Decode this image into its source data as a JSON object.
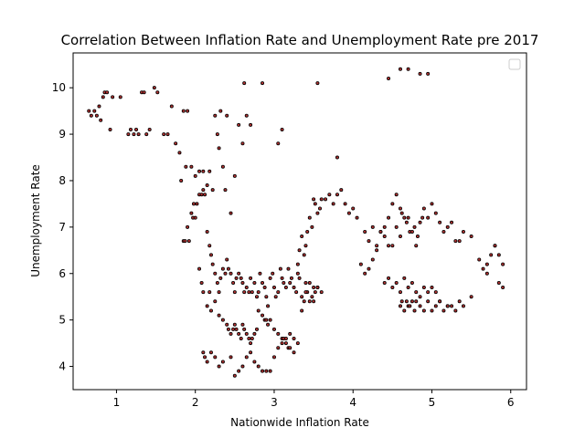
{
  "chart_data": {
    "type": "scatter",
    "title": "Correlation Between Inflation Rate and Unemployment Rate pre 2017",
    "xlabel": "Nationwide Inflation Rate",
    "ylabel": "Unemployment Rate",
    "xlim": [
      0.45,
      6.2
    ],
    "ylim": [
      3.5,
      10.75
    ],
    "xticks": [
      "1",
      "2",
      "3",
      "4",
      "5",
      "6"
    ],
    "yticks": [
      "4",
      "5",
      "6",
      "7",
      "8",
      "9",
      "10"
    ],
    "grid": false,
    "legend": "top-right (empty)",
    "marker_fill": "#b03030",
    "marker_edge": "#000000",
    "series": [
      {
        "x": [
          0.65,
          0.68,
          0.72,
          0.75,
          0.78,
          0.8,
          0.83,
          0.85,
          0.88,
          0.92,
          0.95,
          1.05,
          1.15,
          1.18,
          1.22,
          1.25,
          1.28,
          1.32,
          1.35,
          1.38,
          1.42,
          1.48,
          1.52,
          1.6,
          1.65,
          1.7,
          1.75,
          1.8,
          1.82,
          1.85,
          1.88,
          1.9,
          1.95,
          2.0,
          2.05,
          2.1,
          2.15,
          2.18,
          2.22,
          2.25,
          2.28,
          2.3,
          2.32,
          2.35,
          2.38,
          2.4,
          2.45,
          2.5,
          2.55,
          2.6,
          2.62,
          2.65,
          2.7,
          2.85,
          3.05,
          3.1,
          3.55,
          3.8,
          4.45,
          4.6,
          4.7,
          4.85,
          4.95,
          1.85,
          1.87,
          1.9,
          1.92,
          1.95,
          1.97,
          1.98,
          2.0,
          2.02,
          2.05,
          2.08,
          2.1,
          2.12,
          2.15,
          2.18,
          2.2,
          2.22,
          2.25,
          2.28,
          2.3,
          2.32,
          2.35,
          2.38,
          2.4,
          2.42,
          2.45,
          2.48,
          2.5,
          2.52,
          2.55,
          2.58,
          2.6,
          2.62,
          2.65,
          2.68,
          2.7,
          2.72,
          2.75,
          2.78,
          2.8,
          2.82,
          2.85,
          2.88,
          2.9,
          2.92,
          2.95,
          2.98,
          3.0,
          3.02,
          3.05,
          3.08,
          3.1,
          3.12,
          3.15,
          3.18,
          3.2,
          3.22,
          3.25,
          3.28,
          3.3,
          3.32,
          3.35,
          3.38,
          3.4,
          3.42,
          3.45,
          3.48,
          3.5,
          3.52,
          3.55,
          2.05,
          2.08,
          2.1,
          2.15,
          2.18,
          2.2,
          2.25,
          2.3,
          2.35,
          2.4,
          2.42,
          2.45,
          2.48,
          2.5,
          2.52,
          2.55,
          2.58,
          2.6,
          2.62,
          2.65,
          2.68,
          2.7,
          2.72,
          2.75,
          2.78,
          2.8,
          2.85,
          2.88,
          2.9,
          2.92,
          2.95,
          3.0,
          3.05,
          3.1,
          3.12,
          3.15,
          3.18,
          3.2,
          3.25,
          2.1,
          2.12,
          2.15,
          2.2,
          2.25,
          2.3,
          2.35,
          2.45,
          2.5,
          2.55,
          2.6,
          2.65,
          2.7,
          2.75,
          2.8,
          2.85,
          2.9,
          2.95,
          3.0,
          3.05,
          3.1,
          3.15,
          3.2,
          3.25,
          3.3,
          3.35,
          3.4,
          3.45,
          3.5,
          3.55,
          3.6,
          3.3,
          3.32,
          3.35,
          3.38,
          3.4,
          3.42,
          3.45,
          3.48,
          3.5,
          3.52,
          3.55,
          3.58,
          3.6,
          3.65,
          3.7,
          3.75,
          3.8,
          3.85,
          3.9,
          3.95,
          4.0,
          4.05,
          4.1,
          4.15,
          4.2,
          4.25,
          4.3,
          4.35,
          4.4,
          4.45,
          4.5,
          4.55,
          4.6,
          4.15,
          4.2,
          4.25,
          4.3,
          4.35,
          4.4,
          4.45,
          4.5,
          4.55,
          4.6,
          4.62,
          4.65,
          4.68,
          4.7,
          4.72,
          4.75,
          4.78,
          4.8,
          4.82,
          4.85,
          4.88,
          4.9,
          4.95,
          5.0,
          5.05,
          5.1,
          5.15,
          5.2,
          5.25,
          5.3,
          5.35,
          5.4,
          5.5,
          5.6,
          5.7,
          5.8,
          5.85,
          5.9,
          4.6,
          4.62,
          4.65,
          4.68,
          4.7,
          4.72,
          4.75,
          4.78,
          4.8,
          4.85,
          4.9,
          4.95,
          5.0,
          5.05,
          5.1,
          5.15,
          5.2,
          5.25,
          5.3,
          5.35,
          5.4,
          5.5,
          5.65,
          5.7,
          5.75,
          5.8,
          5.85,
          5.9,
          4.4,
          4.45,
          4.5,
          4.55,
          4.6,
          4.65,
          4.7,
          4.75,
          4.8,
          4.85,
          4.9,
          4.95,
          5.0,
          5.05,
          5.1,
          5.2
        ],
        "y": [
          9.5,
          9.4,
          9.5,
          9.4,
          9.6,
          9.3,
          9.8,
          9.9,
          9.9,
          9.1,
          9.8,
          9.8,
          9.0,
          9.1,
          9.0,
          9.1,
          9.0,
          9.9,
          9.9,
          9.0,
          9.1,
          10.0,
          9.9,
          9.0,
          9.0,
          9.6,
          8.8,
          8.6,
          8.0,
          9.5,
          8.3,
          9.5,
          8.3,
          8.1,
          8.2,
          8.2,
          7.9,
          8.2,
          7.8,
          9.4,
          9.0,
          8.7,
          9.5,
          8.3,
          7.8,
          9.4,
          7.3,
          8.1,
          9.2,
          8.8,
          10.1,
          9.4,
          9.2,
          10.1,
          8.8,
          9.1,
          10.1,
          8.5,
          10.2,
          10.4,
          10.4,
          10.3,
          10.3,
          6.7,
          6.7,
          7.0,
          6.7,
          7.3,
          7.2,
          7.5,
          7.2,
          7.5,
          7.7,
          7.7,
          7.8,
          7.7,
          6.9,
          6.6,
          6.4,
          6.2,
          6.0,
          5.8,
          5.6,
          5.9,
          6.1,
          6.0,
          6.3,
          6.1,
          6.0,
          5.8,
          5.6,
          5.9,
          6.0,
          5.9,
          5.8,
          5.6,
          5.7,
          5.6,
          5.9,
          5.6,
          5.8,
          5.5,
          5.6,
          6.0,
          5.8,
          5.7,
          5.5,
          5.3,
          5.9,
          6.0,
          5.7,
          5.5,
          5.6,
          6.1,
          5.9,
          5.8,
          5.7,
          6.1,
          5.8,
          5.9,
          5.7,
          5.6,
          6.0,
          5.9,
          5.5,
          5.4,
          5.8,
          5.6,
          5.4,
          5.5,
          5.7,
          5.6,
          5.7,
          6.1,
          5.8,
          5.6,
          5.3,
          5.6,
          5.2,
          5.4,
          5.1,
          5.0,
          4.9,
          4.8,
          4.7,
          4.8,
          4.9,
          4.8,
          4.7,
          4.6,
          4.9,
          4.8,
          4.7,
          4.6,
          4.5,
          4.6,
          4.7,
          4.8,
          5.2,
          5.1,
          5.0,
          5.0,
          4.9,
          5.0,
          4.8,
          4.7,
          4.6,
          4.6,
          4.5,
          4.4,
          4.4,
          4.3,
          4.3,
          4.2,
          4.1,
          4.3,
          4.2,
          4.0,
          4.1,
          4.2,
          3.8,
          3.9,
          4.0,
          4.2,
          4.3,
          4.1,
          4.0,
          3.9,
          3.9,
          3.9,
          4.2,
          4.4,
          4.5,
          4.6,
          4.7,
          4.6,
          4.5,
          5.2,
          5.6,
          5.8,
          5.4,
          5.7,
          5.6,
          6.2,
          6.5,
          6.8,
          6.4,
          6.6,
          6.9,
          7.2,
          7.0,
          7.6,
          7.5,
          7.3,
          7.4,
          7.6,
          7.6,
          7.7,
          7.5,
          7.7,
          7.8,
          7.5,
          7.3,
          7.4,
          7.2,
          6.2,
          6.0,
          6.1,
          6.3,
          6.6,
          6.9,
          7.0,
          7.2,
          7.5,
          7.7,
          7.4,
          6.9,
          6.7,
          7.0,
          6.5,
          6.9,
          6.8,
          6.6,
          6.6,
          7.0,
          6.8,
          7.3,
          7.2,
          7.1,
          7.2,
          6.9,
          6.9,
          7.0,
          6.6,
          6.8,
          7.1,
          7.2,
          7.4,
          7.2,
          7.5,
          7.3,
          7.1,
          6.9,
          7.0,
          7.1,
          6.7,
          6.7,
          6.9,
          6.8,
          6.3,
          6.0,
          6.6,
          6.4,
          6.2,
          5.3,
          5.4,
          5.2,
          5.4,
          5.3,
          5.3,
          5.4,
          5.2,
          5.4,
          5.3,
          5.2,
          5.4,
          5.2,
          5.3,
          5.4,
          5.2,
          5.3,
          5.3,
          5.2,
          5.4,
          5.3,
          5.5,
          6.1,
          6.2,
          6.4,
          6.6,
          5.8,
          5.7,
          5.8,
          5.9,
          5.7,
          5.8,
          5.6,
          5.9,
          5.7,
          5.8,
          5.6,
          5.5,
          5.7,
          5.6,
          5.7,
          5.6,
          5.4,
          5.3
        ]
      }
    ]
  }
}
